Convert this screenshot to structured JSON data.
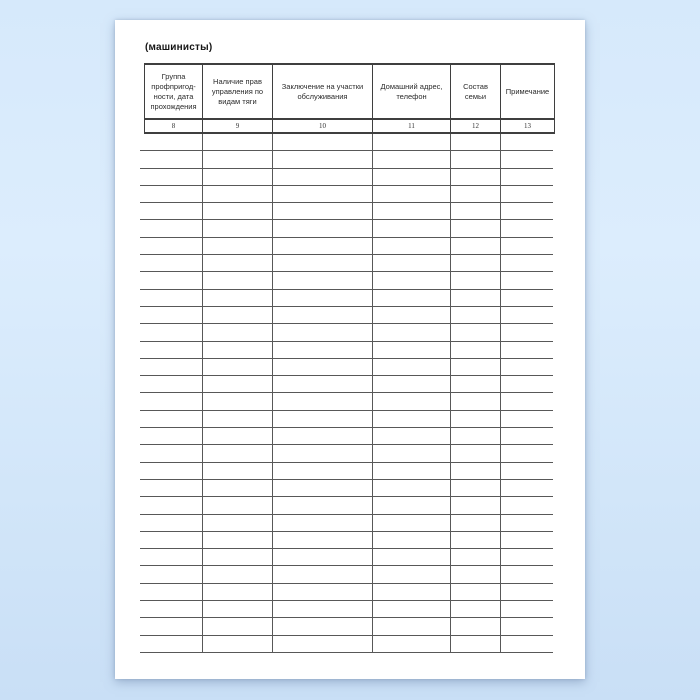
{
  "page": {
    "title": "(машинисты)"
  },
  "table": {
    "columns": [
      {
        "label": "Группа\nпрофпригод-\nности, дата\nпрохождения",
        "number": "8"
      },
      {
        "label": "Наличие прав\nуправления по\nвидам тяги",
        "number": "9"
      },
      {
        "label": "Заключение на участки\nобслуживания",
        "number": "10"
      },
      {
        "label": "Домашний адрес,\nтелефон",
        "number": "11"
      },
      {
        "label": "Состав\nсемьи",
        "number": "12"
      },
      {
        "label": "Примечание",
        "number": "13"
      }
    ],
    "body_row_count": 30,
    "body_cells_content": ""
  },
  "colors": {
    "background_top": "#d6e9fb",
    "background_bottom": "#c9dff6",
    "paper": "#ffffff",
    "table_border": "#3f3f3f",
    "row_line": "#585858",
    "text": "#2b2b2b"
  }
}
